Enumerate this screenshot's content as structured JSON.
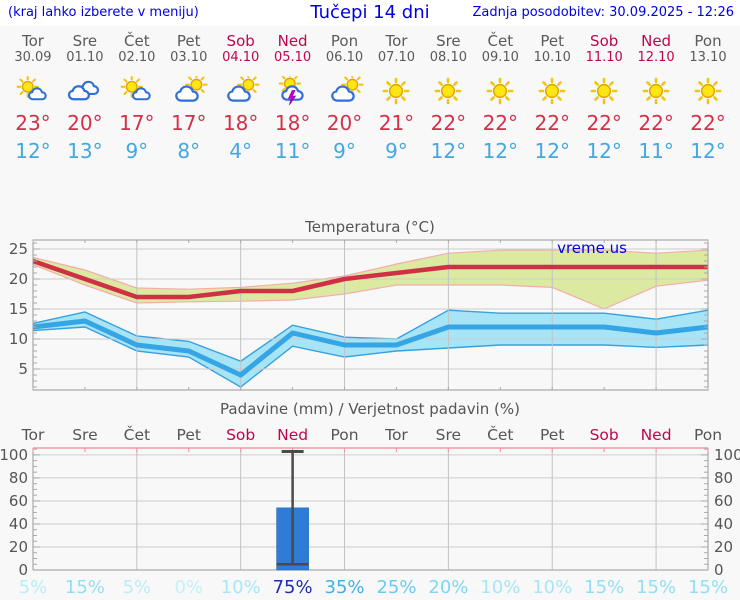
{
  "header": {
    "left_note": "(kraj lahko izberete v meniju)",
    "title": "Tučepi 14 dni",
    "updated": "Zadnja posodobitev: 30.09.2025 - 12:26"
  },
  "watermark": "vreme.us",
  "colors": {
    "header_blue": "#0000e0",
    "weekday_gray": "#5a5a5a",
    "weekend_red": "#c00550",
    "tmax_red": "#d33049",
    "tmin_blue": "#43a7e1",
    "grid_h": "#cdcdcd",
    "grid_v": "#c2c2c2",
    "frame": "#999999",
    "tick": "#aaaaaa",
    "band_max_fill": "#dce9a0",
    "band_max_edge": "#f2aeae",
    "line_max": "#d03045",
    "band_min_fill": "#a7e4f6",
    "band_min_edge": "#35a1e0",
    "line_min": "#35a5e5",
    "bar_blue": "#2e7cd6",
    "whisker": "#4a4a4a",
    "precip_top_axis": "#ef9aa8",
    "chart_text": "#555555",
    "prob_colors": {
      "0%": "#c2effa",
      "5%": "#b9edf9",
      "10%": "#a6e7f7",
      "15%": "#92dff4",
      "20%": "#80d6f1",
      "25%": "#69cbee",
      "35%": "#3fb1e4",
      "75%": "#1f2cb2"
    }
  },
  "days": [
    {
      "name": "Tor",
      "date": "30.09",
      "weekend": false,
      "icon": "sun-cloud",
      "tmax": 23,
      "tmin": 12,
      "precip_prob": "5%"
    },
    {
      "name": "Sre",
      "date": "01.10",
      "weekend": false,
      "icon": "clouds",
      "tmax": 20,
      "tmin": 13,
      "precip_prob": "15%"
    },
    {
      "name": "Čet",
      "date": "02.10",
      "weekend": false,
      "icon": "sun-cloud",
      "tmax": 17,
      "tmin": 9,
      "precip_prob": "5%"
    },
    {
      "name": "Pet",
      "date": "03.10",
      "weekend": false,
      "icon": "cloud-sun",
      "tmax": 17,
      "tmin": 8,
      "precip_prob": "0%"
    },
    {
      "name": "Sob",
      "date": "04.10",
      "weekend": true,
      "icon": "cloud-sun",
      "tmax": 18,
      "tmin": 4,
      "precip_prob": "10%"
    },
    {
      "name": "Ned",
      "date": "05.10",
      "weekend": true,
      "icon": "cloud-sun-storm",
      "tmax": 18,
      "tmin": 11,
      "precip_prob": "75%"
    },
    {
      "name": "Pon",
      "date": "06.10",
      "weekend": false,
      "icon": "cloud-sun",
      "tmax": 20,
      "tmin": 9,
      "precip_prob": "35%"
    },
    {
      "name": "Tor",
      "date": "07.10",
      "weekend": false,
      "icon": "sun",
      "tmax": 21,
      "tmin": 9,
      "precip_prob": "25%"
    },
    {
      "name": "Sre",
      "date": "08.10",
      "weekend": false,
      "icon": "sun",
      "tmax": 22,
      "tmin": 12,
      "precip_prob": "20%"
    },
    {
      "name": "Čet",
      "date": "09.10",
      "weekend": false,
      "icon": "sun",
      "tmax": 22,
      "tmin": 12,
      "precip_prob": "10%"
    },
    {
      "name": "Pet",
      "date": "10.10",
      "weekend": false,
      "icon": "sun",
      "tmax": 22,
      "tmin": 12,
      "precip_prob": "10%"
    },
    {
      "name": "Sob",
      "date": "11.10",
      "weekend": true,
      "icon": "sun",
      "tmax": 22,
      "tmin": 12,
      "precip_prob": "15%"
    },
    {
      "name": "Ned",
      "date": "12.10",
      "weekend": true,
      "icon": "sun",
      "tmax": 22,
      "tmin": 11,
      "precip_prob": "15%"
    },
    {
      "name": "Pon",
      "date": "13.10",
      "weekend": false,
      "icon": "sun",
      "tmax": 22,
      "tmin": 12,
      "precip_prob": "15%"
    }
  ],
  "chart_data": [
    {
      "type": "line",
      "title": "Temperatura (°C)",
      "x_labels": [
        "Tor",
        "Sre",
        "Čet",
        "Pet",
        "Sob",
        "Ned",
        "Pon",
        "Tor",
        "Sre",
        "Čet",
        "Pet",
        "Sob",
        "Ned",
        "Pon"
      ],
      "ylim": [
        1.5,
        26.5
      ],
      "yticks": [
        5,
        10,
        15,
        20,
        25
      ],
      "grid": true,
      "legend_position": "none",
      "series": [
        {
          "name": "max_temp",
          "values": [
            23,
            20,
            17,
            17,
            18,
            18,
            20,
            21,
            22,
            22,
            22,
            22,
            22,
            22
          ]
        },
        {
          "name": "max_band_upper",
          "values": [
            23.6,
            21.5,
            18.5,
            18.3,
            18.6,
            19.3,
            20.5,
            22.5,
            24.3,
            24.8,
            24.8,
            24.8,
            24.3,
            24.8
          ]
        },
        {
          "name": "max_band_lower",
          "values": [
            22.4,
            19,
            16,
            16.2,
            16.3,
            16.5,
            17.5,
            19,
            19,
            19,
            18.6,
            15,
            18.8,
            19.8
          ]
        },
        {
          "name": "min_temp",
          "values": [
            12,
            13,
            9,
            8,
            4,
            11,
            9,
            9,
            12,
            12,
            12,
            12,
            11,
            12
          ]
        },
        {
          "name": "min_band_upper",
          "values": [
            12.6,
            14.5,
            10.5,
            9.6,
            6.3,
            12.3,
            10.3,
            10,
            14.8,
            14.3,
            14.3,
            14.3,
            13.3,
            14.8
          ]
        },
        {
          "name": "min_band_lower",
          "values": [
            11.4,
            12,
            8,
            7,
            2,
            8.8,
            7,
            8,
            8.5,
            9,
            9,
            9,
            8.6,
            9
          ]
        }
      ]
    },
    {
      "type": "bar",
      "title": "Padavine (mm) / Verjetnost padavin (%)",
      "x_labels": [
        "Tor",
        "Sre",
        "Čet",
        "Pet",
        "Sob",
        "Ned",
        "Pon",
        "Tor",
        "Sre",
        "Čet",
        "Pet",
        "Sob",
        "Ned",
        "Pon"
      ],
      "ylim": [
        0,
        106
      ],
      "yticks": [
        0,
        20,
        40,
        60,
        80,
        100
      ],
      "grid": true,
      "bars": [
        {
          "day_index": 5,
          "value_mm": 54,
          "whisker_high": 103,
          "whisker_low": 5
        }
      ],
      "probabilities": [
        "5%",
        "15%",
        "5%",
        "0%",
        "10%",
        "75%",
        "35%",
        "25%",
        "20%",
        "10%",
        "10%",
        "15%",
        "15%",
        "15%"
      ]
    }
  ]
}
